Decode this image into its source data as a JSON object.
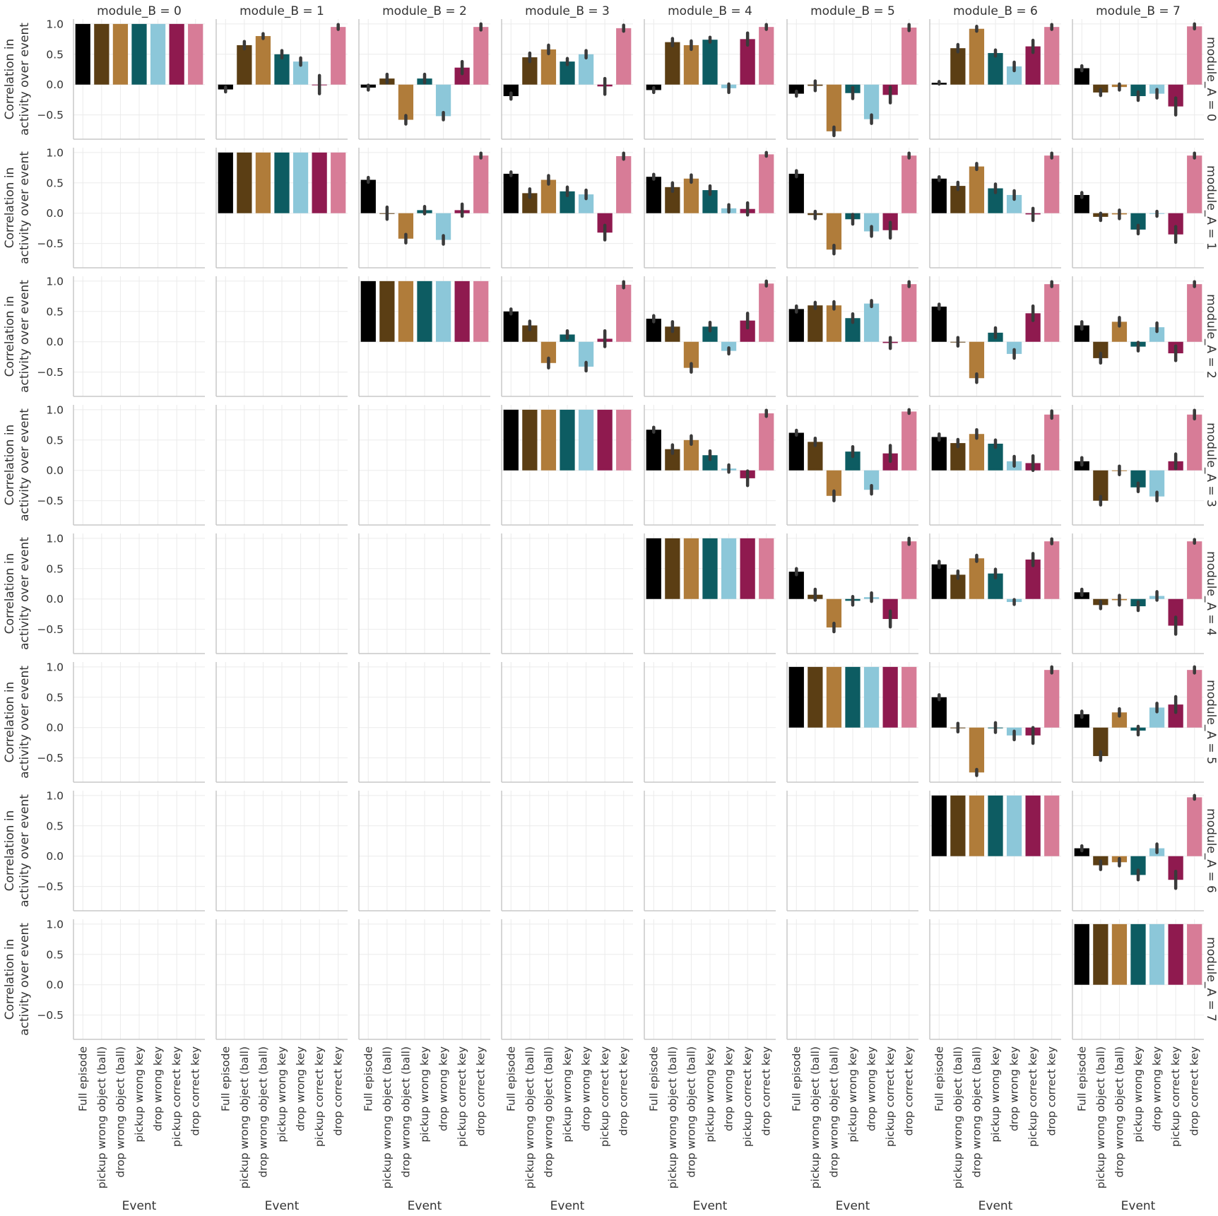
{
  "chart_data": {
    "type": "bar",
    "layout": "facet-grid",
    "col_var": "module_B",
    "row_var": "module_A",
    "col_titles": [
      "module_B = 0",
      "module_B = 1",
      "module_B = 2",
      "module_B = 3",
      "module_B = 4",
      "module_B = 5",
      "module_B = 6",
      "module_B = 7"
    ],
    "row_titles": [
      "module_A = 0",
      "module_A = 1",
      "module_A = 2",
      "module_A = 3",
      "module_A = 4",
      "module_A = 5",
      "module_A = 6",
      "module_A = 7"
    ],
    "ylabel_line1": "Correlation in",
    "ylabel_line2": "activity over event",
    "xlabel": "Event",
    "categories": [
      "Full episode",
      "pickup wrong object (ball)",
      "drop wrong object (ball)",
      "pickup wrong key",
      "drop wrong key",
      "pickup correct key",
      "drop correct key"
    ],
    "colors": [
      "#000000",
      "#5b3e14",
      "#b07c3a",
      "#0d5c62",
      "#8cc7d9",
      "#8f1a4f",
      "#d77c97"
    ],
    "ylim": [
      -0.9,
      1.08
    ],
    "yticks": [
      -0.5,
      0.0,
      0.5,
      1.0
    ],
    "ytick_labels": [
      "−0.5",
      "0.0",
      "0.5",
      "1.0"
    ],
    "grid": true,
    "error_bar_color": "#3a3a3a",
    "panels": [
      {
        "row": 0,
        "col": 0,
        "values": [
          1,
          1,
          1,
          1,
          1,
          1,
          1
        ],
        "errors": [
          0,
          0,
          0,
          0,
          0,
          0,
          0
        ]
      },
      {
        "row": 0,
        "col": 1,
        "values": [
          -0.08,
          0.65,
          0.8,
          0.5,
          0.38,
          0.0,
          0.95
        ],
        "errors": [
          0.04,
          0.06,
          0.04,
          0.06,
          0.06,
          0.15,
          0.04
        ]
      },
      {
        "row": 0,
        "col": 2,
        "values": [
          -0.05,
          0.1,
          -0.58,
          0.1,
          -0.52,
          0.28,
          0.95
        ],
        "errors": [
          0.04,
          0.07,
          0.07,
          0.07,
          0.06,
          0.1,
          0.05
        ]
      },
      {
        "row": 0,
        "col": 3,
        "values": [
          -0.19,
          0.45,
          0.58,
          0.38,
          0.5,
          -0.03,
          0.93
        ],
        "errors": [
          0.05,
          0.07,
          0.07,
          0.05,
          0.06,
          0.13,
          0.05
        ]
      },
      {
        "row": 0,
        "col": 4,
        "values": [
          -0.09,
          0.7,
          0.65,
          0.74,
          -0.06,
          0.75,
          0.95
        ],
        "errors": [
          0.04,
          0.06,
          0.07,
          0.04,
          0.07,
          0.1,
          0.04
        ]
      },
      {
        "row": 0,
        "col": 5,
        "values": [
          -0.15,
          -0.02,
          -0.77,
          -0.14,
          -0.57,
          -0.17,
          0.94
        ],
        "errors": [
          0.04,
          0.08,
          0.07,
          0.09,
          0.07,
          0.13,
          0.05
        ]
      },
      {
        "row": 0,
        "col": 6,
        "values": [
          0.03,
          0.6,
          0.92,
          0.52,
          0.3,
          0.63,
          0.95
        ],
        "errors": [
          0.02,
          0.06,
          0.04,
          0.05,
          0.07,
          0.1,
          0.04
        ]
      },
      {
        "row": 0,
        "col": 7,
        "values": [
          0.27,
          -0.13,
          -0.04,
          -0.19,
          -0.15,
          -0.36,
          0.96
        ],
        "errors": [
          0.04,
          0.05,
          0.05,
          0.07,
          0.07,
          0.14,
          0.04
        ]
      },
      {
        "row": 1,
        "col": 1,
        "values": [
          1,
          1,
          1,
          1,
          1,
          1,
          1
        ],
        "errors": [
          0,
          0,
          0,
          0,
          0,
          0,
          0
        ]
      },
      {
        "row": 1,
        "col": 2,
        "values": [
          0.55,
          0.0,
          -0.42,
          0.05,
          -0.44,
          0.05,
          0.95
        ],
        "errors": [
          0.04,
          0.1,
          0.07,
          0.06,
          0.07,
          0.1,
          0.04
        ]
      },
      {
        "row": 1,
        "col": 3,
        "values": [
          0.65,
          0.33,
          0.55,
          0.36,
          0.31,
          -0.32,
          0.94
        ],
        "errors": [
          0.03,
          0.07,
          0.07,
          0.07,
          0.07,
          0.12,
          0.05
        ]
      },
      {
        "row": 1,
        "col": 4,
        "values": [
          0.6,
          0.43,
          0.57,
          0.38,
          0.08,
          0.07,
          0.97
        ],
        "errors": [
          0.04,
          0.07,
          0.06,
          0.07,
          0.06,
          0.1,
          0.03
        ]
      },
      {
        "row": 1,
        "col": 5,
        "values": [
          0.65,
          -0.03,
          -0.6,
          -0.1,
          -0.3,
          -0.28,
          0.95
        ],
        "errors": [
          0.05,
          0.06,
          0.07,
          0.08,
          0.08,
          0.13,
          0.04
        ]
      },
      {
        "row": 1,
        "col": 6,
        "values": [
          0.57,
          0.45,
          0.77,
          0.41,
          0.3,
          -0.02,
          0.95
        ],
        "errors": [
          0.03,
          0.06,
          0.05,
          0.07,
          0.07,
          0.1,
          0.04
        ]
      },
      {
        "row": 1,
        "col": 7,
        "values": [
          0.3,
          -0.06,
          -0.02,
          -0.27,
          -0.01,
          -0.35,
          0.95
        ],
        "errors": [
          0.04,
          0.06,
          0.07,
          0.07,
          0.04,
          0.13,
          0.04
        ]
      },
      {
        "row": 2,
        "col": 2,
        "values": [
          1,
          1,
          1,
          1,
          1,
          1,
          1
        ],
        "errors": [
          0,
          0,
          0,
          0,
          0,
          0,
          0
        ]
      },
      {
        "row": 2,
        "col": 3,
        "values": [
          0.5,
          0.27,
          -0.35,
          0.12,
          -0.41,
          0.05,
          0.94
        ],
        "errors": [
          0.04,
          0.07,
          0.08,
          0.06,
          0.07,
          0.13,
          0.05
        ]
      },
      {
        "row": 2,
        "col": 4,
        "values": [
          0.38,
          0.25,
          -0.43,
          0.25,
          -0.15,
          0.35,
          0.96
        ],
        "errors": [
          0.05,
          0.08,
          0.07,
          0.07,
          0.05,
          0.12,
          0.04
        ]
      },
      {
        "row": 2,
        "col": 5,
        "values": [
          0.54,
          0.6,
          0.6,
          0.39,
          0.63,
          -0.02,
          0.95
        ],
        "errors": [
          0.05,
          0.05,
          0.06,
          0.07,
          0.05,
          0.09,
          0.04
        ]
      },
      {
        "row": 2,
        "col": 6,
        "values": [
          0.58,
          0.0,
          -0.6,
          0.15,
          -0.2,
          0.47,
          0.95
        ],
        "errors": [
          0.04,
          0.07,
          0.07,
          0.08,
          0.07,
          0.12,
          0.04
        ]
      },
      {
        "row": 2,
        "col": 7,
        "values": [
          0.27,
          -0.27,
          0.33,
          -0.08,
          0.24,
          -0.19,
          0.95
        ],
        "errors": [
          0.06,
          0.08,
          0.07,
          0.07,
          0.07,
          0.12,
          0.04
        ]
      },
      {
        "row": 3,
        "col": 3,
        "values": [
          1,
          1,
          1,
          1,
          1,
          1,
          1
        ],
        "errors": [
          0,
          0,
          0,
          0,
          0,
          0,
          0
        ]
      },
      {
        "row": 3,
        "col": 4,
        "values": [
          0.67,
          0.35,
          0.5,
          0.25,
          0.03,
          -0.13,
          0.94
        ],
        "errors": [
          0.04,
          0.07,
          0.07,
          0.07,
          0.06,
          0.12,
          0.05
        ]
      },
      {
        "row": 3,
        "col": 5,
        "values": [
          0.62,
          0.47,
          -0.42,
          0.31,
          -0.32,
          0.28,
          0.97
        ],
        "errors": [
          0.04,
          0.06,
          0.08,
          0.08,
          0.07,
          0.13,
          0.03
        ]
      },
      {
        "row": 3,
        "col": 6,
        "values": [
          0.55,
          0.45,
          0.6,
          0.44,
          0.15,
          0.12,
          0.92
        ],
        "errors": [
          0.05,
          0.06,
          0.07,
          0.06,
          0.08,
          0.12,
          0.06
        ]
      },
      {
        "row": 3,
        "col": 7,
        "values": [
          0.15,
          -0.5,
          0.0,
          -0.28,
          -0.43,
          0.15,
          0.92
        ],
        "errors": [
          0.06,
          0.07,
          0.07,
          0.07,
          0.07,
          0.12,
          0.07
        ]
      },
      {
        "row": 4,
        "col": 4,
        "values": [
          1,
          1,
          1,
          1,
          1,
          1,
          1
        ],
        "errors": [
          0,
          0,
          0,
          0,
          0,
          0,
          0
        ]
      },
      {
        "row": 4,
        "col": 5,
        "values": [
          0.45,
          0.07,
          -0.47,
          -0.03,
          0.03,
          -0.33,
          0.95
        ],
        "errors": [
          0.05,
          0.09,
          0.07,
          0.07,
          0.07,
          0.13,
          0.05
        ]
      },
      {
        "row": 4,
        "col": 6,
        "values": [
          0.57,
          0.4,
          0.67,
          0.42,
          -0.05,
          0.65,
          0.95
        ],
        "errors": [
          0.05,
          0.06,
          0.05,
          0.07,
          0.04,
          0.1,
          0.04
        ]
      },
      {
        "row": 4,
        "col": 7,
        "values": [
          0.11,
          -0.1,
          -0.02,
          -0.12,
          0.05,
          -0.44,
          0.95
        ],
        "errors": [
          0.05,
          0.06,
          0.08,
          0.07,
          0.07,
          0.14,
          0.03
        ]
      },
      {
        "row": 5,
        "col": 5,
        "values": [
          1,
          1,
          1,
          1,
          1,
          1,
          1
        ],
        "errors": [
          0,
          0,
          0,
          0,
          0,
          0,
          0
        ]
      },
      {
        "row": 5,
        "col": 6,
        "values": [
          0.5,
          0.0,
          -0.74,
          0.0,
          -0.13,
          -0.13,
          0.95
        ],
        "errors": [
          0.04,
          0.07,
          0.05,
          0.08,
          0.07,
          0.13,
          0.05
        ]
      },
      {
        "row": 5,
        "col": 7,
        "values": [
          0.22,
          -0.47,
          0.25,
          -0.05,
          0.33,
          0.38,
          0.95
        ],
        "errors": [
          0.05,
          0.07,
          0.06,
          0.07,
          0.07,
          0.13,
          0.05
        ]
      },
      {
        "row": 6,
        "col": 6,
        "values": [
          1,
          1,
          1,
          1,
          1,
          1,
          1
        ],
        "errors": [
          0,
          0,
          0,
          0,
          0,
          0,
          0
        ]
      },
      {
        "row": 6,
        "col": 7,
        "values": [
          0.13,
          -0.15,
          -0.1,
          -0.31,
          0.13,
          -0.39,
          0.97
        ],
        "errors": [
          0.04,
          0.07,
          0.06,
          0.08,
          0.07,
          0.14,
          0.03
        ]
      },
      {
        "row": 7,
        "col": 7,
        "values": [
          1,
          1,
          1,
          1,
          1,
          1,
          1
        ],
        "errors": [
          0,
          0,
          0,
          0,
          0,
          0,
          0
        ]
      }
    ]
  }
}
